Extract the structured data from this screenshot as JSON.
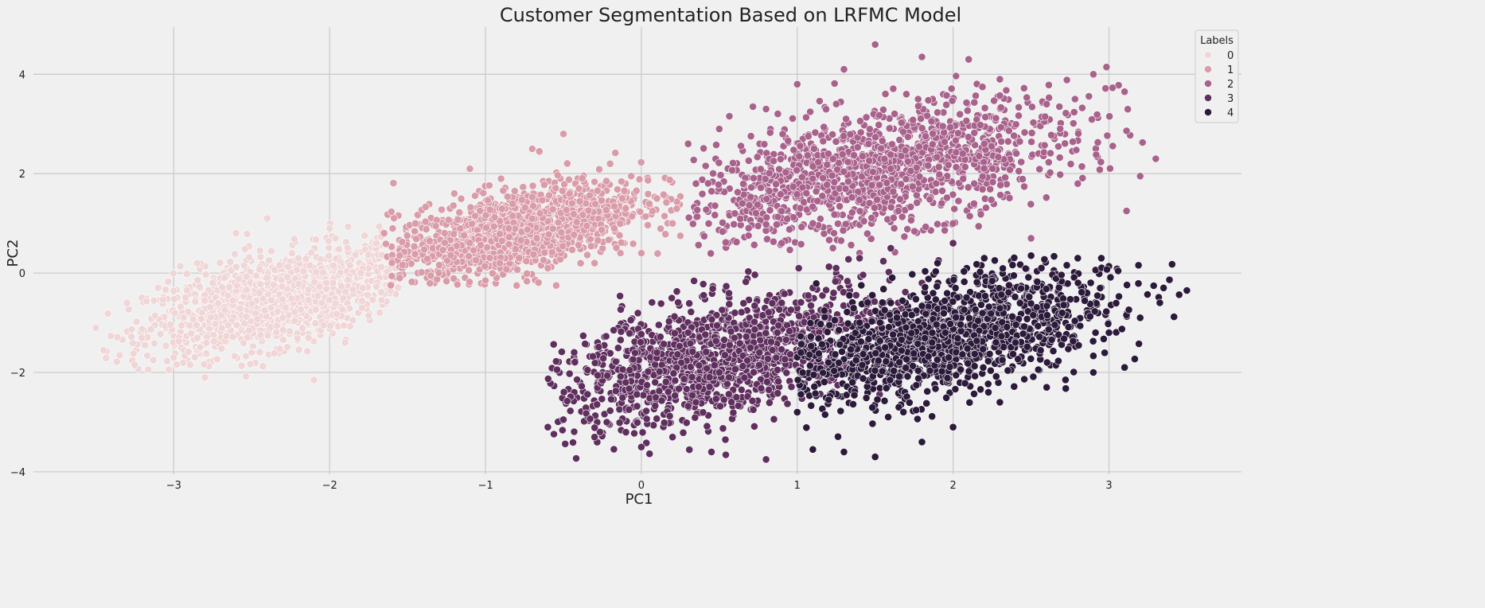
{
  "chart_data": {
    "type": "scatter",
    "title": "Customer Segmentation Based on LRFMC Model",
    "xlabel": "PC1",
    "ylabel": "PC2",
    "xlim": [
      -3.9,
      3.85
    ],
    "ylim": [
      -4.05,
      4.95
    ],
    "xticks": [
      -3,
      -2,
      -1,
      0,
      1,
      2,
      3
    ],
    "yticks": [
      -4,
      -2,
      0,
      2,
      4
    ],
    "xtick_labels": [
      "−3",
      "−2",
      "−1",
      "0",
      "1",
      "2",
      "3"
    ],
    "ytick_labels": [
      "−4",
      "−2",
      "0",
      "2",
      "4"
    ],
    "grid": true,
    "legend": {
      "title": "Labels",
      "position": "top-right"
    },
    "series": [
      {
        "name": "0",
        "color": "#f0d6d6",
        "center": [
          -2.35,
          -0.55
        ],
        "x_range": [
          -3.5,
          -1.55
        ],
        "y_range": [
          -2.15,
          1.15
        ],
        "points": [
          [
            -3.5,
            -1.1
          ],
          [
            -3.45,
            -1.55
          ],
          [
            -3.3,
            -0.6
          ],
          [
            -3.25,
            -1.85
          ],
          [
            -3.1,
            -0.3
          ],
          [
            -3.0,
            -1.7
          ],
          [
            -2.85,
            0.2
          ],
          [
            -2.8,
            -2.1
          ],
          [
            -2.6,
            0.8
          ],
          [
            -2.5,
            -1.6
          ],
          [
            -2.4,
            1.1
          ],
          [
            -2.3,
            -0.9
          ],
          [
            -2.2,
            0.3
          ],
          [
            -2.1,
            -2.15
          ],
          [
            -2.0,
            0.9
          ],
          [
            -1.9,
            -1.4
          ],
          [
            -1.8,
            0.0
          ],
          [
            -1.7,
            0.6
          ],
          [
            -1.6,
            -0.05
          ],
          [
            -2.45,
            -0.4
          ],
          [
            -2.65,
            -1.05
          ],
          [
            -2.05,
            -0.6
          ],
          [
            -1.85,
            -0.95
          ],
          [
            -2.75,
            -0.2
          ]
        ]
      },
      {
        "name": "1",
        "color": "#d99ca8",
        "center": [
          -0.8,
          0.85
        ],
        "x_range": [
          -1.65,
          0.25
        ],
        "y_range": [
          -0.25,
          2.85
        ],
        "points": [
          [
            -1.65,
            0.8
          ],
          [
            -1.55,
            0.35
          ],
          [
            -1.45,
            1.0
          ],
          [
            -1.3,
            0.0
          ],
          [
            -1.2,
            1.6
          ],
          [
            -1.1,
            2.1
          ],
          [
            -1.0,
            -0.15
          ],
          [
            -0.9,
            1.9
          ],
          [
            -0.8,
            -0.25
          ],
          [
            -0.7,
            2.5
          ],
          [
            -0.6,
            0.1
          ],
          [
            -0.5,
            2.8
          ],
          [
            -0.4,
            1.7
          ],
          [
            -0.3,
            0.2
          ],
          [
            -0.2,
            2.2
          ],
          [
            -0.1,
            1.3
          ],
          [
            0.0,
            0.4
          ],
          [
            0.1,
            1.5
          ],
          [
            0.2,
            1.0
          ],
          [
            0.25,
            0.75
          ],
          [
            -0.85,
            0.9
          ],
          [
            -0.65,
            1.2
          ],
          [
            -0.35,
            0.95
          ]
        ]
      },
      {
        "name": "2",
        "color": "#a8628c",
        "center": [
          1.5,
          2.05
        ],
        "x_range": [
          0.3,
          3.3
        ],
        "y_range": [
          0.3,
          4.6
        ],
        "points": [
          [
            0.3,
            2.6
          ],
          [
            0.35,
            1.8
          ],
          [
            0.5,
            2.9
          ],
          [
            0.6,
            1.2
          ],
          [
            0.8,
            3.3
          ],
          [
            0.9,
            0.6
          ],
          [
            1.0,
            3.8
          ],
          [
            1.1,
            1.0
          ],
          [
            1.3,
            4.1
          ],
          [
            1.4,
            0.4
          ],
          [
            1.5,
            4.6
          ],
          [
            1.7,
            3.6
          ],
          [
            1.8,
            4.35
          ],
          [
            2.0,
            1.0
          ],
          [
            2.1,
            4.3
          ],
          [
            2.3,
            3.9
          ],
          [
            2.5,
            0.7
          ],
          [
            2.6,
            3.4
          ],
          [
            2.8,
            1.8
          ],
          [
            2.9,
            4.0
          ],
          [
            3.1,
            3.65
          ],
          [
            3.2,
            1.95
          ],
          [
            3.3,
            2.3
          ],
          [
            1.6,
            2.1
          ],
          [
            1.2,
            2.4
          ],
          [
            2.2,
            2.6
          ]
        ]
      },
      {
        "name": "3",
        "color": "#5f2f5e",
        "center": [
          0.5,
          -1.7
        ],
        "x_range": [
          -0.6,
          2.1
        ],
        "y_range": [
          -3.75,
          0.6
        ],
        "points": [
          [
            -0.6,
            -3.1
          ],
          [
            -0.5,
            -2.95
          ],
          [
            -0.3,
            -3.3
          ],
          [
            -0.1,
            -2.2
          ],
          [
            0.0,
            -3.5
          ],
          [
            0.1,
            -1.6
          ],
          [
            0.2,
            -3.3
          ],
          [
            0.3,
            -1.2
          ],
          [
            0.45,
            -3.6
          ],
          [
            0.6,
            -0.8
          ],
          [
            0.8,
            -3.75
          ],
          [
            0.9,
            -0.6
          ],
          [
            1.1,
            -0.3
          ],
          [
            1.25,
            0.1
          ],
          [
            1.4,
            0.3
          ],
          [
            1.6,
            0.5
          ],
          [
            1.8,
            -0.2
          ],
          [
            2.0,
            0.6
          ],
          [
            0.5,
            -2.0
          ],
          [
            0.7,
            -1.5
          ],
          [
            0.35,
            -2.6
          ]
        ]
      },
      {
        "name": "4",
        "color": "#2b1a3a",
        "center": [
          1.95,
          -1.3
        ],
        "x_range": [
          1.0,
          3.5
        ],
        "y_range": [
          -3.7,
          0.4
        ],
        "points": [
          [
            1.0,
            -2.8
          ],
          [
            1.1,
            -3.55
          ],
          [
            1.2,
            -1.8
          ],
          [
            1.3,
            -3.6
          ],
          [
            1.4,
            -1.0
          ],
          [
            1.5,
            -3.7
          ],
          [
            1.6,
            -0.6
          ],
          [
            1.8,
            -3.4
          ],
          [
            1.9,
            0.2
          ],
          [
            2.0,
            -3.1
          ],
          [
            2.2,
            0.3
          ],
          [
            2.3,
            -2.6
          ],
          [
            2.5,
            0.35
          ],
          [
            2.6,
            -2.3
          ],
          [
            2.8,
            0.3
          ],
          [
            2.9,
            -2.0
          ],
          [
            3.0,
            -1.2
          ],
          [
            3.1,
            -1.9
          ],
          [
            3.2,
            -0.9
          ],
          [
            3.35,
            -0.3
          ],
          [
            3.5,
            -0.35
          ],
          [
            2.4,
            -1.4
          ],
          [
            1.95,
            -1.2
          ],
          [
            2.7,
            -0.8
          ]
        ]
      }
    ]
  }
}
